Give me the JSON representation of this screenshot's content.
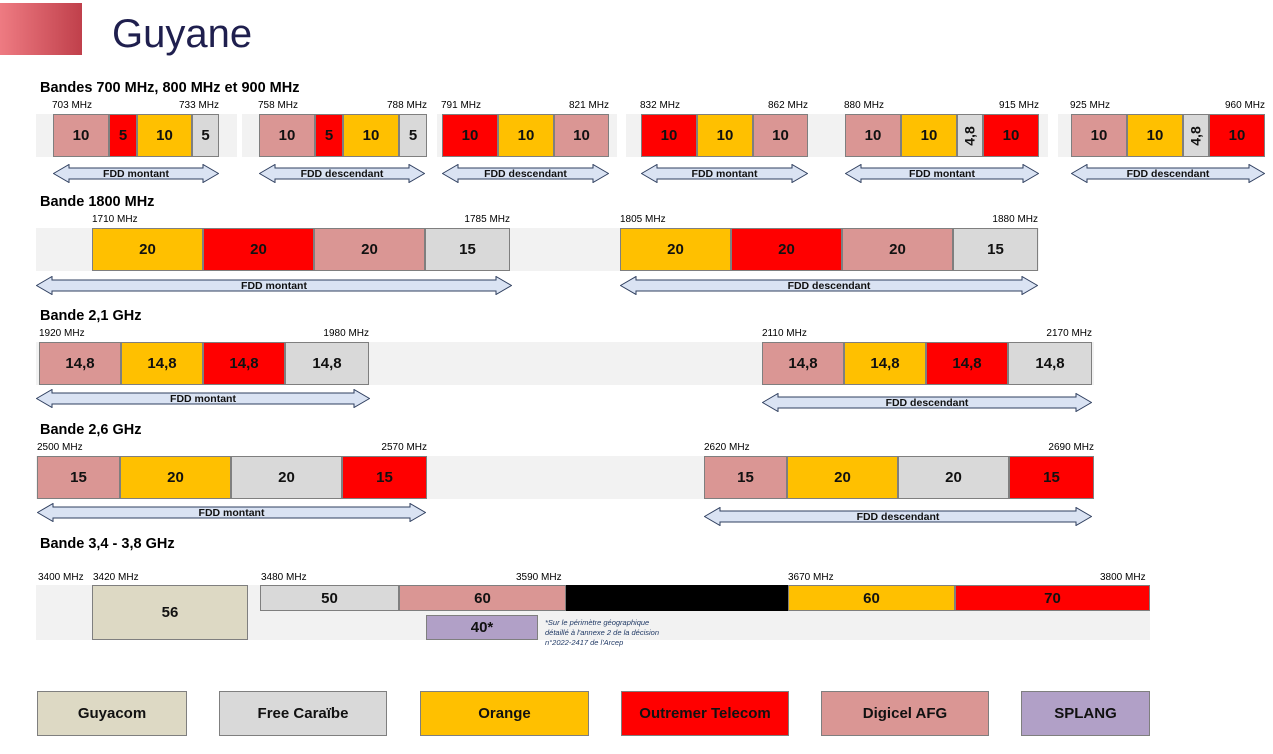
{
  "title": "Guyane",
  "colors": {
    "Guyacom": "#ddd9c4",
    "Free Caraïbe": "#d9d9d9",
    "Orange": "#ffc000",
    "Outremer Telecom": "#ff0000",
    "Digicel AFG": "#da9694",
    "SPLANG": "#b1a0c7",
    "black": "#000000"
  },
  "sections": [
    {
      "id": "s700",
      "title": "Bandes 700 MHz, 800 MHz et 900 MHz"
    },
    {
      "id": "s1800",
      "title": "Bande 1800 MHz"
    },
    {
      "id": "s21",
      "title": "Bande 2,1 GHz"
    },
    {
      "id": "s26",
      "title": "Bande 2,6 GHz"
    },
    {
      "id": "s35",
      "title": "Bande 3,4 - 3,8 GHz"
    }
  ],
  "blocks": [
    {
      "id": "b700ul",
      "section": "s700",
      "start": "703 MHz",
      "end": "733 MHz",
      "direction": "FDD montant",
      "segments": [
        {
          "value": "10",
          "op": "Digicel AFG"
        },
        {
          "value": "5",
          "op": "Outremer Telecom"
        },
        {
          "value": "10",
          "op": "Orange"
        },
        {
          "value": "5",
          "op": "Free Caraïbe"
        }
      ]
    },
    {
      "id": "b700dl",
      "section": "s700",
      "start": "758 MHz",
      "end": "788 MHz",
      "direction": "FDD descendant",
      "segments": [
        {
          "value": "10",
          "op": "Digicel AFG"
        },
        {
          "value": "5",
          "op": "Outremer Telecom"
        },
        {
          "value": "10",
          "op": "Orange"
        },
        {
          "value": "5",
          "op": "Free Caraïbe"
        }
      ]
    },
    {
      "id": "b800dl",
      "section": "s700",
      "start": "791 MHz",
      "end": "821 MHz",
      "direction": "FDD descendant",
      "segments": [
        {
          "value": "10",
          "op": "Outremer Telecom"
        },
        {
          "value": "10",
          "op": "Orange"
        },
        {
          "value": "10",
          "op": "Digicel AFG"
        }
      ]
    },
    {
      "id": "b800ul",
      "section": "s700",
      "start": "832 MHz",
      "end": "862 MHz",
      "direction": "FDD montant",
      "segments": [
        {
          "value": "10",
          "op": "Outremer Telecom"
        },
        {
          "value": "10",
          "op": "Orange"
        },
        {
          "value": "10",
          "op": "Digicel AFG"
        }
      ]
    },
    {
      "id": "b900ul",
      "section": "s700",
      "start": "880 MHz",
      "end": "915 MHz",
      "direction": "FDD montant",
      "segments": [
        {
          "value": "10",
          "op": "Digicel AFG"
        },
        {
          "value": "10",
          "op": "Orange"
        },
        {
          "value": "4,8",
          "op": "Free Caraïbe"
        },
        {
          "value": "10",
          "op": "Outremer Telecom"
        }
      ]
    },
    {
      "id": "b900dl",
      "section": "s700",
      "start": "925 MHz",
      "end": "960 MHz",
      "direction": "FDD descendant",
      "segments": [
        {
          "value": "10",
          "op": "Digicel AFG"
        },
        {
          "value": "10",
          "op": "Orange"
        },
        {
          "value": "4,8",
          "op": "Free Caraïbe"
        },
        {
          "value": "10",
          "op": "Outremer Telecom"
        }
      ]
    },
    {
      "id": "b1800ul",
      "section": "s1800",
      "start": "1710 MHz",
      "end": "1785 MHz",
      "direction": "FDD montant",
      "segments": [
        {
          "value": "20",
          "op": "Orange"
        },
        {
          "value": "20",
          "op": "Outremer Telecom"
        },
        {
          "value": "20",
          "op": "Digicel AFG"
        },
        {
          "value": "15",
          "op": "Free Caraïbe"
        }
      ]
    },
    {
      "id": "b1800dl",
      "section": "s1800",
      "start": "1805 MHz",
      "end": "1880 MHz",
      "direction": "FDD descendant",
      "segments": [
        {
          "value": "20",
          "op": "Orange"
        },
        {
          "value": "20",
          "op": "Outremer Telecom"
        },
        {
          "value": "20",
          "op": "Digicel AFG"
        },
        {
          "value": "15",
          "op": "Free Caraïbe"
        }
      ]
    },
    {
      "id": "b21ul",
      "section": "s21",
      "start": "1920 MHz",
      "end": "1980 MHz",
      "direction": "FDD montant",
      "segments": [
        {
          "value": "14,8",
          "op": "Digicel AFG"
        },
        {
          "value": "14,8",
          "op": "Orange"
        },
        {
          "value": "14,8",
          "op": "Outremer Telecom"
        },
        {
          "value": "14,8",
          "op": "Free Caraïbe"
        }
      ]
    },
    {
      "id": "b21dl",
      "section": "s21",
      "start": "2110 MHz",
      "end": "2170 MHz",
      "direction": "FDD descendant",
      "segments": [
        {
          "value": "14,8",
          "op": "Digicel AFG"
        },
        {
          "value": "14,8",
          "op": "Orange"
        },
        {
          "value": "14,8",
          "op": "Outremer Telecom"
        },
        {
          "value": "14,8",
          "op": "Free Caraïbe"
        }
      ]
    },
    {
      "id": "b26ul",
      "section": "s26",
      "start": "2500 MHz",
      "end": "2570 MHz",
      "direction": "FDD montant",
      "segments": [
        {
          "value": "15",
          "op": "Digicel AFG"
        },
        {
          "value": "20",
          "op": "Orange"
        },
        {
          "value": "20",
          "op": "Free Caraïbe"
        },
        {
          "value": "15",
          "op": "Outremer Telecom"
        }
      ]
    },
    {
      "id": "b26dl",
      "section": "s26",
      "start": "2620 MHz",
      "end": "2690 MHz",
      "direction": "FDD descendant",
      "segments": [
        {
          "value": "15",
          "op": "Digicel AFG"
        },
        {
          "value": "20",
          "op": "Orange"
        },
        {
          "value": "20",
          "op": "Free Caraïbe"
        },
        {
          "value": "15",
          "op": "Outremer Telecom"
        }
      ]
    }
  ],
  "band35": {
    "labels": [
      "3400 MHz",
      "3420 MHz",
      "3480 MHz",
      "3590 MHz",
      "3670 MHz",
      "3800 MHz"
    ],
    "guyacom": {
      "value": "56",
      "op": "Guyacom"
    },
    "segments": [
      {
        "value": "50",
        "op": "Free Caraïbe"
      },
      {
        "value": "60",
        "op": "Digicel AFG"
      },
      {
        "value": "",
        "op": "black"
      },
      {
        "value": "60",
        "op": "Orange"
      },
      {
        "value": "70",
        "op": "Outremer Telecom"
      }
    ],
    "splang": {
      "value": "40*",
      "op": "SPLANG"
    },
    "note": [
      "*Sur le périmètre géographique",
      "détaillé à l'annexe 2 de la décision",
      "n°2022-2417 de l'Arcep"
    ]
  },
  "legend": [
    "Guyacom",
    "Free Caraïbe",
    "Orange",
    "Outremer Telecom",
    "Digicel AFG",
    "SPLANG"
  ]
}
